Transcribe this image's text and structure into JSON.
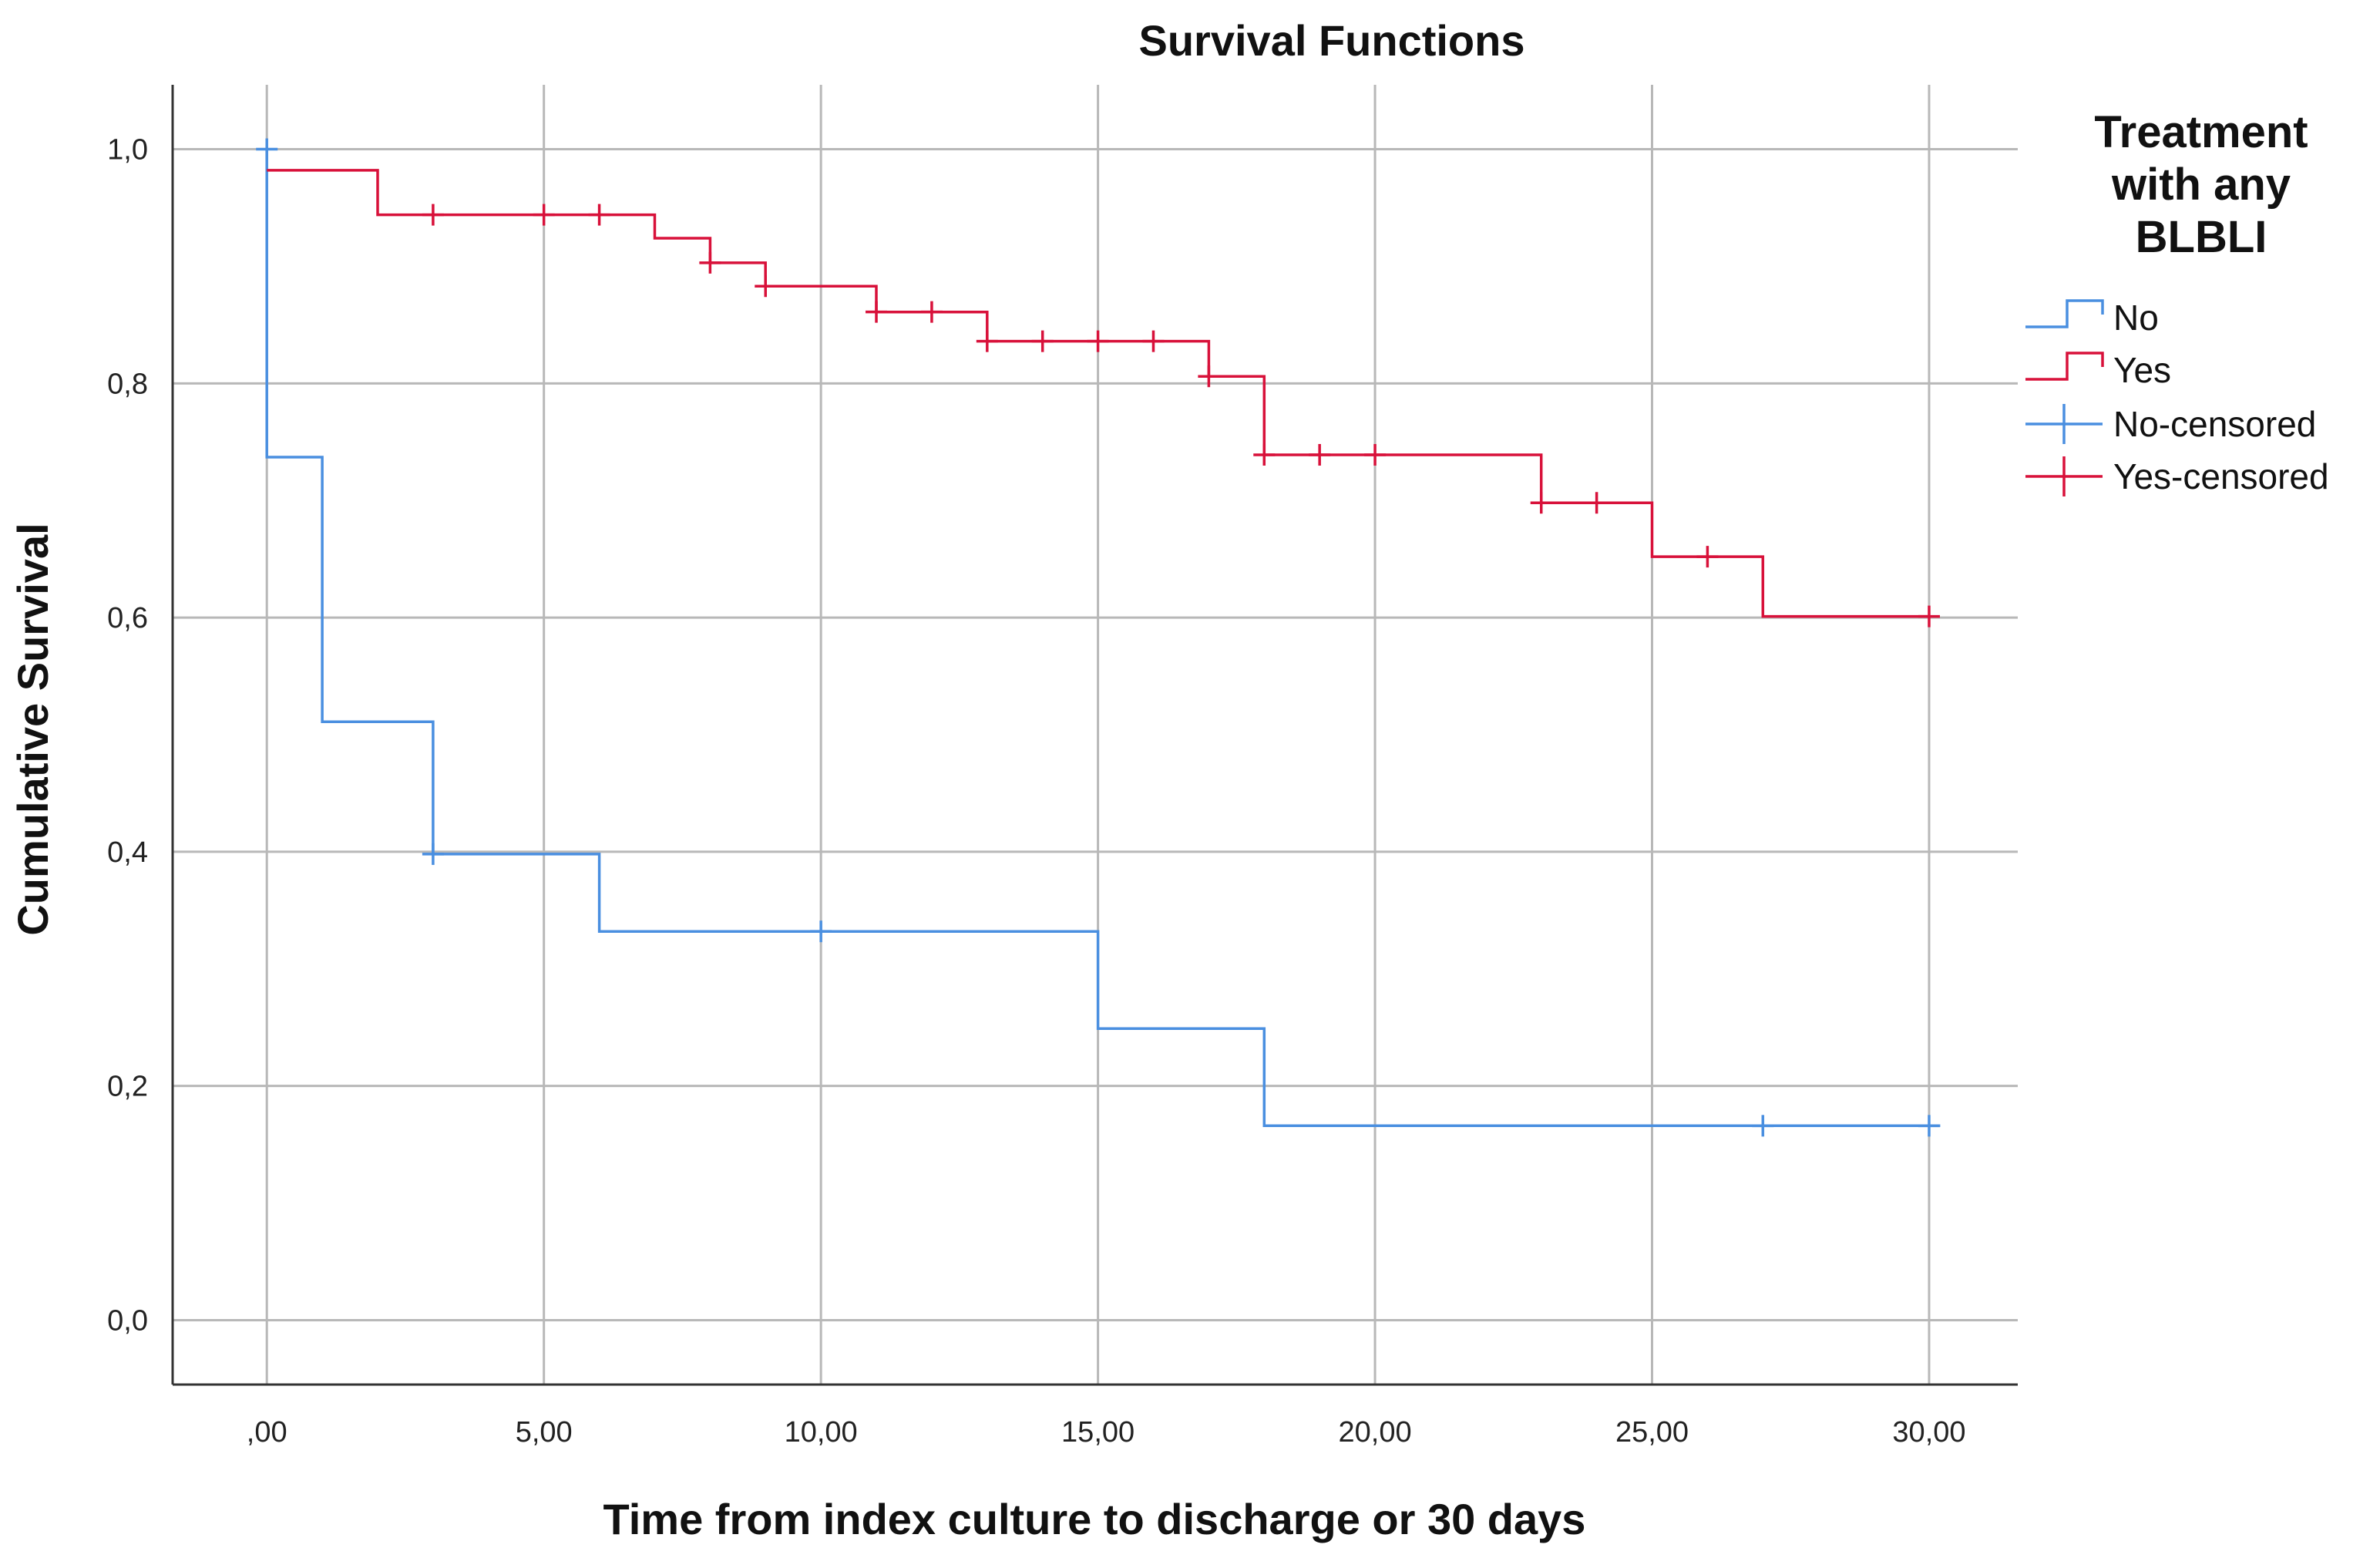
{
  "chart_data": {
    "type": "line",
    "subtype": "kaplan-meier-step",
    "title": "Survival Functions",
    "xlabel": "Time from index culture to discharge or 30 days",
    "ylabel": "Cumulative Survival",
    "xlim": [
      -1.7,
      31.6
    ],
    "ylim": [
      -0.055,
      1.055
    ],
    "x_ticks": [
      0,
      5,
      10,
      15,
      20,
      25,
      30
    ],
    "x_tick_labels": [
      ",00",
      "5,00",
      "10,00",
      "15,00",
      "20,00",
      "25,00",
      "30,00"
    ],
    "y_ticks": [
      0,
      0.2,
      0.4,
      0.6,
      0.8,
      1.0
    ],
    "y_tick_labels": [
      "0,0",
      "0,2",
      "0,4",
      "0,6",
      "0,8",
      "1,0"
    ],
    "grid": true,
    "legend": {
      "title_lines": [
        "Treatment",
        "with any",
        "BLBLI"
      ],
      "placement": "right",
      "entries": [
        "No",
        "Yes",
        "No-censored",
        "Yes-censored"
      ]
    },
    "series": [
      {
        "name": "No",
        "color": "#4a8fe0",
        "steps": [
          [
            0,
            1.0
          ],
          [
            0,
            0.737
          ],
          [
            1,
            0.737
          ],
          [
            1,
            0.511
          ],
          [
            3,
            0.511
          ],
          [
            3,
            0.398
          ],
          [
            6,
            0.398
          ],
          [
            6,
            0.332
          ],
          [
            15,
            0.332
          ],
          [
            15,
            0.249
          ],
          [
            18,
            0.249
          ],
          [
            18,
            0.166
          ],
          [
            30.2,
            0.166
          ]
        ],
        "censored": [
          [
            0,
            1.0
          ],
          [
            3,
            0.398
          ],
          [
            10,
            0.332
          ],
          [
            27,
            0.166
          ],
          [
            30,
            0.166
          ]
        ]
      },
      {
        "name": "Yes",
        "color": "#d8113a",
        "steps": [
          [
            0,
            0.982
          ],
          [
            2,
            0.982
          ],
          [
            2,
            0.944
          ],
          [
            7,
            0.944
          ],
          [
            7,
            0.924
          ],
          [
            8,
            0.924
          ],
          [
            8,
            0.903
          ],
          [
            9,
            0.903
          ],
          [
            9,
            0.883
          ],
          [
            11,
            0.883
          ],
          [
            11,
            0.861
          ],
          [
            13,
            0.861
          ],
          [
            13,
            0.836
          ],
          [
            17,
            0.836
          ],
          [
            17,
            0.806
          ],
          [
            18,
            0.806
          ],
          [
            18,
            0.739
          ],
          [
            23,
            0.739
          ],
          [
            23,
            0.698
          ],
          [
            25,
            0.698
          ],
          [
            25,
            0.652
          ],
          [
            27,
            0.652
          ],
          [
            27,
            0.601
          ],
          [
            30.0,
            0.601
          ]
        ],
        "censored": [
          [
            3,
            0.944
          ],
          [
            5,
            0.944
          ],
          [
            6,
            0.944
          ],
          [
            8,
            0.903
          ],
          [
            9,
            0.883
          ],
          [
            11,
            0.861
          ],
          [
            12,
            0.861
          ],
          [
            13,
            0.836
          ],
          [
            14,
            0.836
          ],
          [
            15,
            0.836
          ],
          [
            16,
            0.836
          ],
          [
            17,
            0.806
          ],
          [
            18,
            0.739
          ],
          [
            19,
            0.739
          ],
          [
            20,
            0.739
          ],
          [
            23,
            0.698
          ],
          [
            24,
            0.698
          ],
          [
            26,
            0.652
          ],
          [
            30,
            0.601
          ]
        ]
      }
    ]
  }
}
